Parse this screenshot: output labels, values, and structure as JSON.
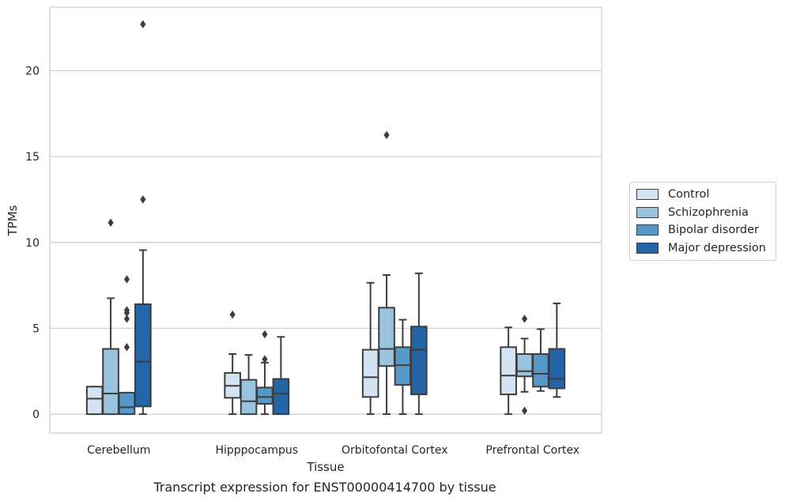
{
  "chart_data": {
    "type": "box",
    "title": "Transcript expression for ENST00000414700 by tissue",
    "xlabel": "Tissue",
    "ylabel": "TPMs",
    "ylim": [
      -1.1,
      23.7
    ],
    "yticks": [
      0,
      5,
      10,
      15,
      20
    ],
    "grid": true,
    "legend_position": "right",
    "categories": [
      "Cerebellum",
      "Hipppocampus",
      "Orbitofontal Cortex",
      "Prefrontal Cortex"
    ],
    "series": [
      {
        "name": "Control",
        "color": "#d4e3f2",
        "boxes": [
          {
            "whislo": 0,
            "q1": 0,
            "med": 0.9,
            "q3": 1.6,
            "whishi": 1.6,
            "fliers": []
          },
          {
            "whislo": 0,
            "q1": 0.95,
            "med": 1.65,
            "q3": 2.4,
            "whishi": 3.5,
            "fliers": [
              5.8
            ]
          },
          {
            "whislo": 0,
            "q1": 1.0,
            "med": 2.15,
            "q3": 3.75,
            "whishi": 7.65,
            "fliers": []
          },
          {
            "whislo": 0,
            "q1": 1.15,
            "med": 2.25,
            "q3": 3.9,
            "whishi": 5.05,
            "fliers": []
          }
        ]
      },
      {
        "name": "Schizophrenia",
        "color": "#9ac3dd",
        "boxes": [
          {
            "whislo": 0,
            "q1": 0,
            "med": 1.2,
            "q3": 3.8,
            "whishi": 6.75,
            "fliers": [
              11.15
            ]
          },
          {
            "whislo": 0,
            "q1": 0,
            "med": 0.75,
            "q3": 2.0,
            "whishi": 3.45,
            "fliers": []
          },
          {
            "whislo": 0,
            "q1": 2.8,
            "med": 3.8,
            "q3": 6.2,
            "whishi": 8.1,
            "fliers": [
              16.25
            ]
          },
          {
            "whislo": 1.3,
            "q1": 2.2,
            "med": 2.5,
            "q3": 3.5,
            "whishi": 4.4,
            "fliers": [
              5.55,
              0.2
            ]
          }
        ]
      },
      {
        "name": "Bipolar disorder",
        "color": "#5698c8",
        "boxes": [
          {
            "whislo": 0,
            "q1": 0,
            "med": 0.4,
            "q3": 1.25,
            "whishi": 1.25,
            "fliers": [
              5.9,
              5.55,
              7.85,
              6.05,
              3.9
            ]
          },
          {
            "whislo": 0,
            "q1": 0.6,
            "med": 1.0,
            "q3": 1.55,
            "whishi": 3.0,
            "fliers": [
              4.65,
              3.2
            ]
          },
          {
            "whislo": 0,
            "q1": 1.7,
            "med": 2.85,
            "q3": 3.9,
            "whishi": 5.5,
            "fliers": []
          },
          {
            "whislo": 1.35,
            "q1": 1.6,
            "med": 2.35,
            "q3": 3.5,
            "whishi": 4.95,
            "fliers": []
          }
        ]
      },
      {
        "name": "Major depression",
        "color": "#2465a7",
        "boxes": [
          {
            "whislo": 0,
            "q1": 0.45,
            "med": 3.05,
            "q3": 6.4,
            "whishi": 9.55,
            "fliers": [
              12.5,
              22.7
            ]
          },
          {
            "whislo": 0,
            "q1": 0,
            "med": 1.2,
            "q3": 2.05,
            "whishi": 4.5,
            "fliers": []
          },
          {
            "whislo": 0,
            "q1": 1.15,
            "med": 3.75,
            "q3": 5.1,
            "whishi": 8.2,
            "fliers": []
          },
          {
            "whislo": 1.0,
            "q1": 1.5,
            "med": 2.05,
            "q3": 3.8,
            "whishi": 6.45,
            "fliers": []
          }
        ]
      }
    ]
  }
}
